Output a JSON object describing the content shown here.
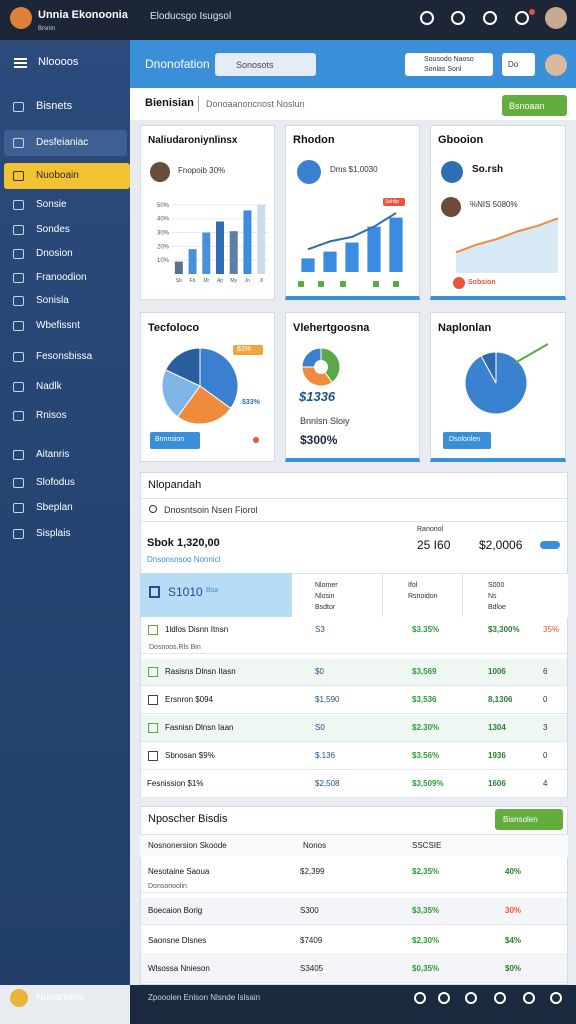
{
  "topbar": {
    "brand": "Unnia Ekonoonia",
    "brand_sub": "Brsnin",
    "title": "Eloducsgo Isugsol"
  },
  "sidebar": {
    "header": "Nloooos",
    "selected": 2,
    "items": [
      "Bisnets",
      "Desfeianiac",
      "Nuoboain",
      "Sonsie",
      "Sondes",
      "Dnosion",
      "Franoodion",
      "Sonisla",
      "Wbefissnt",
      "Fesonsbissa",
      "Nadlk",
      "Rnisos",
      "Aitanris",
      "Slofodus",
      "Sbeplan",
      "Sisplais"
    ],
    "footer": "Nunanians"
  },
  "header": {
    "title": "Dnonofation",
    "search": "Sonosots",
    "account": [
      "Sousodo Naoso",
      "Sonlas Sonl"
    ],
    "small": "Do"
  },
  "breadcrumb": {
    "title": "Bienisian",
    "path": "Donoaanoncnost Noslun",
    "button": "Bsnoaan"
  },
  "cards": [
    {
      "title": "Naliudaroniynlinsx",
      "caption": "Fnopoib 30%",
      "chart": {
        "type": "bar",
        "categories": [
          "Sb",
          "Fb",
          "Mr",
          "Ap",
          "My",
          "Jn",
          "Jl"
        ],
        "values": [
          9,
          18,
          30,
          38,
          31,
          46,
          50
        ],
        "colors": [
          "#5b6f8f",
          "#4a90d9",
          "#4a90d9",
          "#2f6db5",
          "#5b7fa6",
          "#3b8be0",
          "#c9dcef"
        ],
        "ylim": [
          0,
          55
        ],
        "yticks": [
          {
            "value": 10,
            "label": "10%"
          },
          {
            "value": 20,
            "label": "20%"
          },
          {
            "value": 30,
            "label": "30%"
          },
          {
            "value": 40,
            "label": "40%"
          },
          {
            "value": 50,
            "label": "50%"
          }
        ]
      }
    },
    {
      "title": "Rhodon",
      "caption": "Dms $1,0030",
      "tag": "Sohlip",
      "chart": {
        "type": "bar-line",
        "ylim": [
          0,
          60
        ],
        "series": [
          {
            "values": [
              12,
              18,
              26,
              40,
              48
            ],
            "color": "#3b8be0"
          },
          {
            "values": [
              20,
              27,
              31,
              40,
              52
            ],
            "color": "#2f6db5"
          }
        ]
      }
    },
    {
      "title": "Gbooion",
      "caption": "So.rsh",
      "note": "%NIS 5080%",
      "tag": "Sobsion",
      "chart": {
        "type": "area",
        "values": [
          22,
          30,
          36,
          44,
          50,
          58
        ],
        "ylim": [
          0,
          70
        ],
        "color": "#f08a3c",
        "fill": "#d6e9f4"
      }
    },
    {
      "title": "Tecfoloco",
      "labels": [
        "$3%",
        "$33%"
      ],
      "button": "Bnnnsion",
      "chart": {
        "type": "pie",
        "values": [
          35,
          25,
          22,
          18
        ],
        "colors": [
          "#3a7fd0",
          "#f08a3c",
          "#7fb6e6",
          "#2a5d9e"
        ]
      }
    },
    {
      "title": "Vlehertgoosna",
      "big": "$1336",
      "sub": "Bnnlsn Sloiy",
      "total": "$300%",
      "chart": {
        "type": "donut",
        "values": [
          40,
          35,
          25
        ],
        "colors": [
          "#5aa846",
          "#f08a3c",
          "#3a7fd0"
        ]
      }
    },
    {
      "title": "Naplonlan",
      "button": "Dsolonlen",
      "chart": {
        "type": "pie",
        "values": [
          92,
          8
        ],
        "colors": [
          "#3a82cf",
          "#2c6bb0"
        ]
      }
    }
  ],
  "panel": {
    "title": "Nlopandah",
    "search": "Dnosntsoin Nsen Fiorol",
    "summary": {
      "title": "Sbok 1,320,00",
      "link": "Dnsonsnsoo Nonnicl",
      "label": "Ranonol",
      "a": "25 I60",
      "b": "$2,0006"
    },
    "highlight": {
      "text": "S1010",
      "tag": "Bsa"
    },
    "columns": [
      [
        "Nlomer",
        "Nlosin",
        "Bsdtor"
      ],
      [
        "Ifol",
        "Rsnoidon"
      ],
      [
        "S000",
        "Ns",
        "Bdloe"
      ]
    ],
    "rows": [
      [
        "1ldlos Disnn Itnsn",
        "S3",
        "$3.35%",
        "$3,300%",
        "35%"
      ],
      [
        "Dosnoos.Rls Bin"
      ],
      [
        "Rasisns Dlnsn Itasn",
        "$0",
        "$3,569",
        "1006",
        "6"
      ],
      [
        "Ersnron $094",
        "$1,590",
        "$3,536",
        "8,1306",
        "0"
      ],
      [
        "Fasnisn Dlnsn Iaan",
        "S0",
        "$2.30%",
        "1304",
        "3"
      ],
      [
        "Sbnosan $9%",
        "$.136",
        "$3.56%",
        "1936",
        "0"
      ],
      [
        "Fesnission $1%",
        "$2,508",
        "$3,509%",
        "1606",
        "4"
      ]
    ]
  },
  "panel2": {
    "title": "Nposcher Bisdis",
    "button": "Bisnsolen",
    "columns": [
      "Nosnonersion Skoode",
      "Nonos",
      "SSCSIE"
    ],
    "rows": [
      [
        "Nesotaine Saoua",
        "$2,399",
        "$2,35%",
        "40%",
        "Donsonoolin"
      ],
      [
        "Boecaion Borig",
        "S300",
        "$3,35%",
        "30%"
      ],
      [
        "Saonsne Dlsnes",
        "$7409",
        "$2,30%",
        "$4%"
      ],
      [
        "Wlsossa Nnieson",
        "S3405",
        "$0,35%",
        "$0%"
      ]
    ]
  },
  "footer": {
    "text": "Zpooolen Enlson Nlsnde Islsain"
  }
}
